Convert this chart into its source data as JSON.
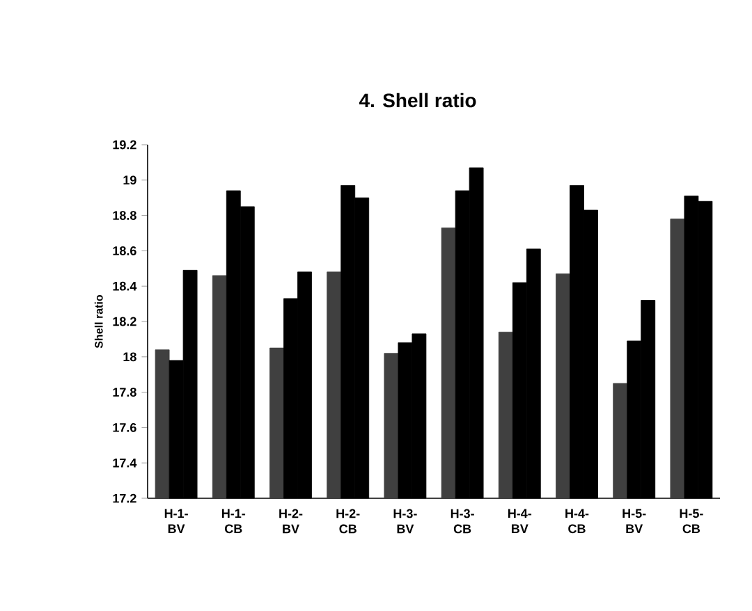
{
  "chart_data": {
    "type": "bar",
    "title": "4. Shell ratio",
    "ylabel": "Shell ratio",
    "categories": [
      "H-1-BV",
      "H-1-CB",
      "H-2-BV",
      "H-2-CB",
      "H-3-BV",
      "H-3-CB",
      "H-4-BV",
      "H-4-CB",
      "H-5-BV",
      "H-5-CB"
    ],
    "series": [
      {
        "color": "#404040",
        "values": [
          18.04,
          18.46,
          18.05,
          18.48,
          18.02,
          18.73,
          18.14,
          18.47,
          17.85,
          18.78
        ]
      },
      {
        "color": "#000000",
        "values": [
          17.98,
          18.94,
          18.33,
          18.97,
          18.08,
          18.94,
          18.42,
          18.97,
          18.09,
          18.91
        ]
      },
      {
        "color": "#000000",
        "values": [
          18.49,
          18.85,
          18.48,
          18.9,
          18.13,
          19.07,
          18.61,
          18.83,
          18.32,
          18.88
        ]
      }
    ],
    "ylim": [
      17.2,
      19.2
    ],
    "yticks": [
      17.2,
      17.4,
      17.6,
      17.8,
      18,
      18.2,
      18.4,
      18.6,
      18.8,
      19,
      19.2
    ],
    "grid": false
  }
}
